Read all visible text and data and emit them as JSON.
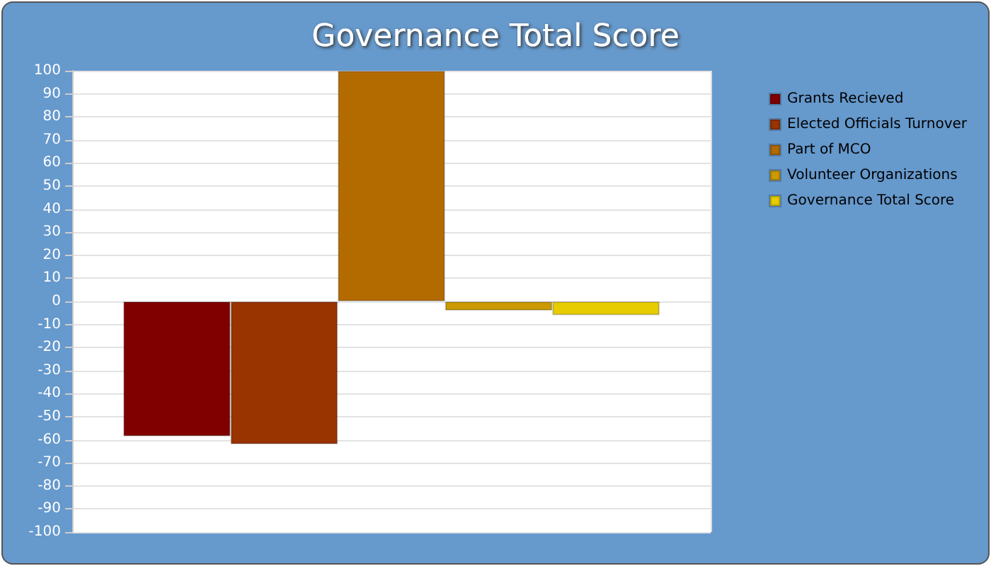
{
  "chart_data": {
    "type": "bar",
    "title": "Governance Total Score",
    "categories": [
      null
    ],
    "series": [
      {
        "name": "Grants Recieved",
        "color": "#800000",
        "values": [
          -58.5
        ]
      },
      {
        "name": "Elected Officials Turnover",
        "color": "#993300",
        "values": [
          -62
        ]
      },
      {
        "name": "Part of MCO",
        "color": "#b36b00",
        "values": [
          100
        ]
      },
      {
        "name": "Volunteer Organizations",
        "color": "#cc9900",
        "values": [
          -4
        ]
      },
      {
        "name": "Governance Total Score",
        "color": "#e6cc00",
        "values": [
          -6
        ]
      }
    ],
    "ylim": [
      -100,
      100
    ],
    "yticks": [
      -100,
      -90,
      -80,
      -70,
      -60,
      -50,
      -40,
      -30,
      -20,
      -10,
      0,
      10,
      20,
      30,
      40,
      50,
      60,
      70,
      80,
      90,
      100
    ],
    "grid": "y",
    "legend": "right"
  }
}
